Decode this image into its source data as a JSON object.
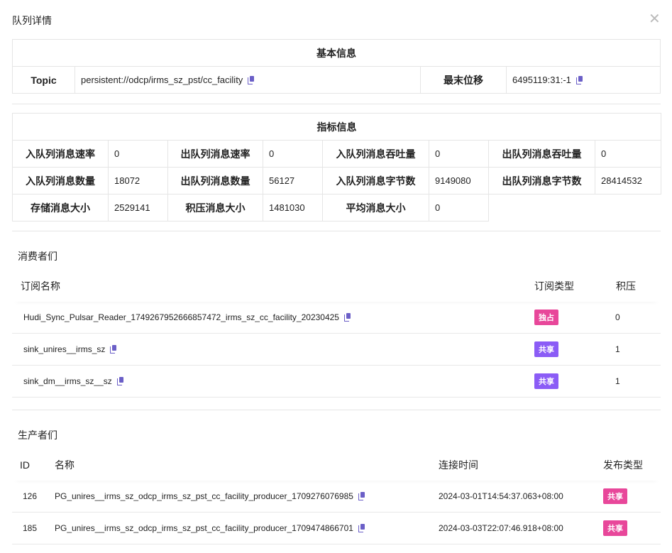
{
  "dialog": {
    "title": "队列详情",
    "close_icon": "close-icon"
  },
  "basic": {
    "header": "基本信息",
    "topic_label": "Topic",
    "topic_value": "persistent://odcp/irms_sz_pst/cc_facility",
    "offset_label": "最末位移",
    "offset_value": "6495119:31:-1"
  },
  "metrics": {
    "header": "指标信息",
    "rows": [
      [
        {
          "label": "入队列消息速率",
          "value": "0"
        },
        {
          "label": "出队列消息速率",
          "value": "0"
        },
        {
          "label": "入队列消息吞吐量",
          "value": "0"
        },
        {
          "label": "出队列消息吞吐量",
          "value": "0"
        }
      ],
      [
        {
          "label": "入队列消息数量",
          "value": "18072"
        },
        {
          "label": "出队列消息数量",
          "value": "56127"
        },
        {
          "label": "入队列消息字节数",
          "value": "9149080"
        },
        {
          "label": "出队列消息字节数",
          "value": "28414532"
        }
      ],
      [
        {
          "label": "存储消息大小",
          "value": "2529141"
        },
        {
          "label": "积压消息大小",
          "value": "1481030"
        },
        {
          "label": "平均消息大小",
          "value": "0"
        }
      ]
    ]
  },
  "consumers": {
    "title": "消费者们",
    "columns": [
      "订阅名称",
      "订阅类型",
      "积压"
    ],
    "rows": [
      {
        "name": "Hudi_Sync_Pulsar_Reader_1749267952666857472_irms_sz_cc_facility_20230425",
        "type": "独占",
        "type_color": "#e8479a",
        "backlog": "0"
      },
      {
        "name": "sink_unires__irms_sz",
        "type": "共享",
        "type_color": "#8b5cf6",
        "backlog": "1"
      },
      {
        "name": "sink_dm__irms_sz__sz",
        "type": "共享",
        "type_color": "#8b5cf6",
        "backlog": "1"
      }
    ]
  },
  "producers": {
    "title": "生产者们",
    "columns": [
      "ID",
      "名称",
      "连接时间",
      "发布类型"
    ],
    "rows": [
      {
        "id": "126",
        "name": "PG_unires__irms_sz_odcp_irms_sz_pst_cc_facility_producer_1709276076985",
        "time": "2024-03-01T14:54:37.063+08:00",
        "type": "共享",
        "type_color": "#e8479a"
      },
      {
        "id": "185",
        "name": "PG_unires__irms_sz_odcp_irms_sz_pst_cc_facility_producer_1709474866701",
        "time": "2024-03-03T22:07:46.918+08:00",
        "type": "共享",
        "type_color": "#e8479a"
      }
    ]
  }
}
